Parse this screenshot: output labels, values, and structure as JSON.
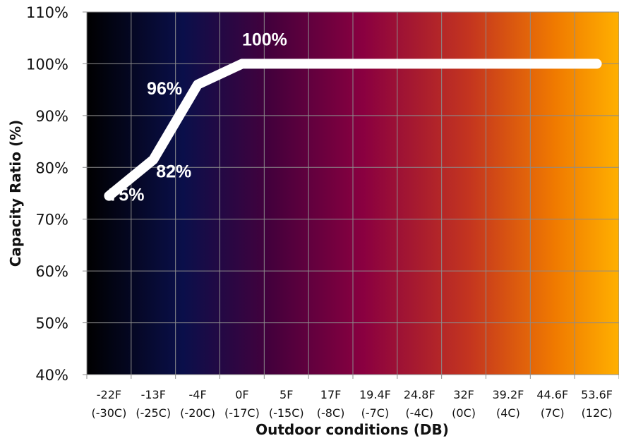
{
  "chart_data": {
    "type": "line",
    "xlabel": "Outdoor conditions (DB)",
    "ylabel": "Capacity Ratio (%)",
    "ylim": [
      40,
      110
    ],
    "ytick_step": 10,
    "yticks": [
      "40%",
      "50%",
      "60%",
      "70%",
      "80%",
      "90%",
      "100%",
      "110%"
    ],
    "categories": [
      [
        "-22F",
        "(-30C)"
      ],
      [
        "-13F",
        "(-25C)"
      ],
      [
        "-4F",
        "(-20C)"
      ],
      [
        "0F",
        "(-17C)"
      ],
      [
        "5F",
        "(-15C)"
      ],
      [
        "17F",
        "(-8C)"
      ],
      [
        "19.4F",
        "(-7C)"
      ],
      [
        "24.8F",
        "(-4C)"
      ],
      [
        "32F",
        "(0C)"
      ],
      [
        "39.2F",
        "(4C)"
      ],
      [
        "44.6F",
        "(7C)"
      ],
      [
        "53.6F",
        "(12C)"
      ]
    ],
    "series": [
      {
        "values": [
          74.5,
          81.5,
          96,
          100,
          100,
          100,
          100,
          100,
          100,
          100,
          100,
          100
        ]
      }
    ],
    "data_labels": [
      {
        "index": 0,
        "text": "75%"
      },
      {
        "index": 1,
        "text": "82%"
      },
      {
        "index": 2,
        "text": "96%"
      },
      {
        "index": 3,
        "text": "100%"
      }
    ],
    "grid": true,
    "background_gradient": [
      "#000000",
      "#0a0f4a",
      "#46003c",
      "#8a0040",
      "#c4351f",
      "#f07a00",
      "#ffb000"
    ],
    "line_color": "#ffffff"
  }
}
